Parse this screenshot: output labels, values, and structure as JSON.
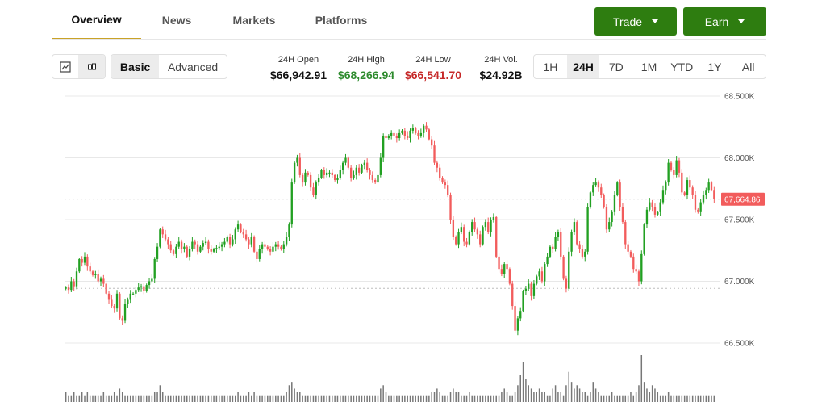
{
  "tabs": [
    {
      "label": "Overview",
      "active": true
    },
    {
      "label": "News",
      "active": false
    },
    {
      "label": "Markets",
      "active": false
    },
    {
      "label": "Platforms",
      "active": false
    }
  ],
  "actions": {
    "trade_label": "Trade",
    "earn_label": "Earn",
    "color": "#2e7d10"
  },
  "chart_type_toggle": {
    "line_icon": "line-chart-icon",
    "candle_icon": "candlestick-icon",
    "selected": "candles"
  },
  "view_toggle": {
    "basic": "Basic",
    "advanced": "Advanced",
    "selected": "Basic"
  },
  "stats": [
    {
      "label": "24H Open",
      "value": "$66,942.91",
      "color": "#111111"
    },
    {
      "label": "24H High",
      "value": "$68,266.94",
      "color": "#2e8b2e"
    },
    {
      "label": "24H Low",
      "value": "$66,541.70",
      "color": "#c62828"
    },
    {
      "label": "24H Vol.",
      "value": "$24.92B",
      "color": "#111111"
    }
  ],
  "ranges": [
    "1H",
    "24H",
    "7D",
    "1M",
    "YTD",
    "1Y",
    "All"
  ],
  "selected_range": "24H",
  "chart_data": {
    "type": "candlestick",
    "y_ticks": [
      "68.500K",
      "68.000K",
      "67.500K",
      "67.000K",
      "66.500K"
    ],
    "y_tick_values": [
      68500,
      68000,
      67500,
      67000,
      66500
    ],
    "ylim": [
      66500,
      68500
    ],
    "current_price": 67664.86,
    "current_price_label": "67,664.86",
    "reference_price": 66942.91,
    "colors": {
      "up": "#22a022",
      "down": "#f25c5c",
      "volume": "#777777",
      "tag": "#f25c5c"
    },
    "closes": [
      66950,
      66930,
      67000,
      66960,
      67080,
      67180,
      67150,
      67200,
      67120,
      67080,
      67050,
      67060,
      67000,
      67020,
      66980,
      66900,
      66850,
      66800,
      66780,
      66900,
      66700,
      66680,
      66820,
      66850,
      66900,
      66900,
      66930,
      66950,
      66960,
      66920,
      66970,
      67000,
      67020,
      67180,
      67280,
      67420,
      67380,
      67340,
      67300,
      67250,
      67220,
      67280,
      67320,
      67260,
      67280,
      67200,
      67260,
      67320,
      67300,
      67240,
      67280,
      67310,
      67320,
      67260,
      67240,
      67260,
      67270,
      67280,
      67300,
      67320,
      67360,
      67300,
      67340,
      67420,
      67460,
      67400,
      67380,
      67340,
      67300,
      67360,
      67240,
      67180,
      67260,
      67300,
      67280,
      67260,
      67240,
      67280,
      67300,
      67280,
      67260,
      67300,
      67360,
      67460,
      67800,
      67960,
      68000,
      67860,
      67800,
      67880,
      67860,
      67760,
      67700,
      67800,
      67840,
      67900,
      67860,
      67880,
      67880,
      67860,
      67820,
      67840,
      67900,
      67960,
      68000,
      67920,
      67840,
      67860,
      67920,
      67880,
      67940,
      67960,
      67900,
      67860,
      67820,
      67800,
      67860,
      68000,
      68180,
      68160,
      68180,
      68200,
      68180,
      68160,
      68200,
      68220,
      68180,
      68160,
      68220,
      68240,
      68200,
      68180,
      68200,
      68260,
      68230,
      68150,
      68100,
      67960,
      67920,
      67840,
      67800,
      67780,
      67700,
      67500,
      67360,
      67300,
      67400,
      67440,
      67320,
      67300,
      67400,
      67480,
      67420,
      67380,
      67300,
      67440,
      67480,
      67400,
      67500,
      67520,
      67200,
      67100,
      67060,
      67140,
      67100,
      66980,
      66800,
      66600,
      66700,
      66760,
      66920,
      66940,
      66980,
      66880,
      66980,
      67040,
      67080,
      67000,
      67140,
      67200,
      67280,
      67260,
      67360,
      67400,
      67200,
      67020,
      66940,
      67240,
      67400,
      67480,
      67300,
      67260,
      67200,
      67240,
      67600,
      67720,
      67780,
      67800,
      67760,
      67700,
      67600,
      67420,
      67480,
      67560,
      67700,
      67800,
      67600,
      67480,
      67300,
      67240,
      67200,
      67100,
      67080,
      67000,
      67220,
      67460,
      67580,
      67640,
      67600,
      67540,
      67560,
      67640,
      67740,
      67800,
      67960,
      67900,
      67860,
      67980,
      67880,
      67720,
      67700,
      67820,
      67760,
      67700,
      67580,
      67560,
      67640,
      67700,
      67740,
      67800,
      67740,
      67665
    ],
    "volumes": [
      0.03,
      0.02,
      0.02,
      0.03,
      0.02,
      0.02,
      0.03,
      0.02,
      0.03,
      0.02,
      0.02,
      0.02,
      0.02,
      0.02,
      0.03,
      0.02,
      0.02,
      0.02,
      0.03,
      0.02,
      0.04,
      0.03,
      0.02,
      0.02,
      0.02,
      0.02,
      0.02,
      0.02,
      0.02,
      0.02,
      0.02,
      0.02,
      0.02,
      0.03,
      0.03,
      0.05,
      0.03,
      0.02,
      0.02,
      0.02,
      0.02,
      0.02,
      0.02,
      0.02,
      0.02,
      0.02,
      0.02,
      0.02,
      0.02,
      0.02,
      0.02,
      0.02,
      0.02,
      0.02,
      0.02,
      0.02,
      0.02,
      0.02,
      0.02,
      0.02,
      0.02,
      0.02,
      0.02,
      0.02,
      0.03,
      0.02,
      0.02,
      0.02,
      0.03,
      0.02,
      0.03,
      0.02,
      0.02,
      0.02,
      0.02,
      0.02,
      0.02,
      0.02,
      0.02,
      0.02,
      0.02,
      0.02,
      0.03,
      0.05,
      0.06,
      0.04,
      0.03,
      0.03,
      0.02,
      0.02,
      0.02,
      0.02,
      0.02,
      0.02,
      0.02,
      0.02,
      0.02,
      0.02,
      0.02,
      0.02,
      0.02,
      0.02,
      0.02,
      0.02,
      0.02,
      0.02,
      0.02,
      0.02,
      0.02,
      0.02,
      0.02,
      0.02,
      0.02,
      0.02,
      0.02,
      0.02,
      0.02,
      0.04,
      0.05,
      0.03,
      0.02,
      0.02,
      0.02,
      0.02,
      0.02,
      0.02,
      0.02,
      0.02,
      0.02,
      0.02,
      0.02,
      0.02,
      0.02,
      0.02,
      0.02,
      0.02,
      0.03,
      0.03,
      0.04,
      0.03,
      0.02,
      0.02,
      0.02,
      0.03,
      0.04,
      0.03,
      0.03,
      0.02,
      0.02,
      0.02,
      0.03,
      0.02,
      0.02,
      0.02,
      0.02,
      0.02,
      0.02,
      0.02,
      0.02,
      0.02,
      0.02,
      0.02,
      0.03,
      0.04,
      0.03,
      0.02,
      0.02,
      0.03,
      0.05,
      0.08,
      0.12,
      0.07,
      0.05,
      0.04,
      0.03,
      0.03,
      0.04,
      0.03,
      0.03,
      0.02,
      0.02,
      0.04,
      0.05,
      0.03,
      0.03,
      0.02,
      0.05,
      0.09,
      0.06,
      0.04,
      0.05,
      0.04,
      0.03,
      0.03,
      0.02,
      0.03,
      0.06,
      0.04,
      0.03,
      0.02,
      0.02,
      0.02,
      0.02,
      0.03,
      0.02,
      0.02,
      0.02,
      0.02,
      0.02,
      0.02,
      0.03,
      0.02,
      0.03,
      0.05,
      0.14,
      0.06,
      0.04,
      0.03,
      0.05,
      0.04,
      0.03,
      0.02,
      0.02,
      0.02,
      0.03,
      0.02,
      0.02,
      0.02,
      0.02,
      0.02,
      0.02,
      0.02,
      0.02,
      0.02,
      0.02,
      0.02,
      0.02,
      0.02,
      0.02,
      0.02,
      0.02,
      0.02,
      0.02,
      0.02,
      0.02
    ]
  }
}
